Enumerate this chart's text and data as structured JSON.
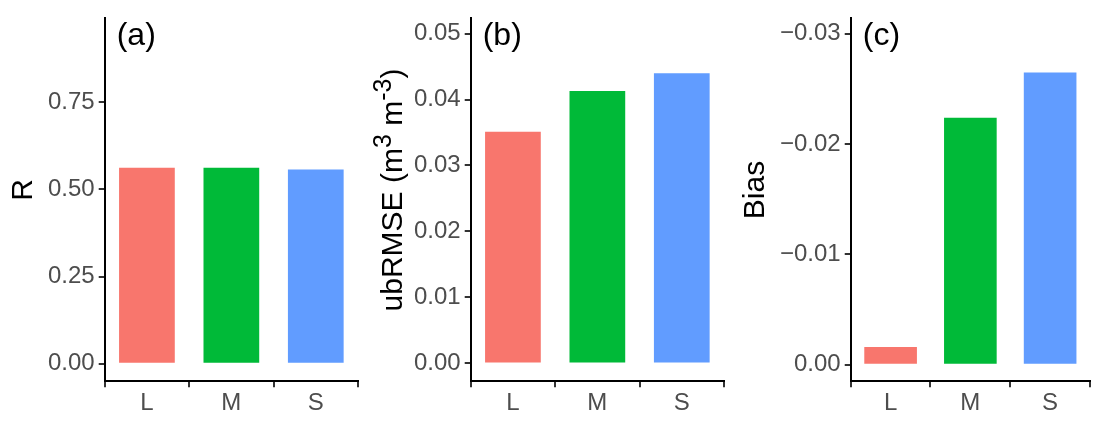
{
  "chart_data": [
    {
      "type": "bar",
      "title": "(a)",
      "ylabel": "R",
      "categories": [
        "L",
        "M",
        "S"
      ],
      "values": [
        0.562,
        0.562,
        0.557
      ],
      "colors": [
        "#f8766d",
        "#00ba38",
        "#619cff"
      ],
      "ylim": [
        -0.05,
        0.99
      ],
      "yticks": [
        {
          "value": 0,
          "label": "0.00"
        },
        {
          "value": 0.25,
          "label": "0.25"
        },
        {
          "value": 0.5,
          "label": "0.50"
        },
        {
          "value": 0.75,
          "label": "0.75"
        }
      ],
      "grid": false,
      "legend": false
    },
    {
      "type": "bar",
      "title": "(b)",
      "ylabel": "ubRMSE (m$^{3}$ m$^{-3}$)",
      "categories": [
        "L",
        "M",
        "S"
      ],
      "values": [
        0.0351,
        0.0413,
        0.044
      ],
      "colors": [
        "#f8766d",
        "#00ba38",
        "#619cff"
      ],
      "ylim": [
        -0.0027,
        0.0523
      ],
      "yticks": [
        {
          "value": 0,
          "label": "0.00"
        },
        {
          "value": 0.01,
          "label": "0.01"
        },
        {
          "value": 0.02,
          "label": "0.02"
        },
        {
          "value": 0.03,
          "label": "0.03"
        },
        {
          "value": 0.04,
          "label": "0.04"
        },
        {
          "value": 0.05,
          "label": "0.05"
        }
      ],
      "grid": false,
      "legend": false
    },
    {
      "type": "bar",
      "title": "(c)",
      "ylabel": "Bias",
      "categories": [
        "L",
        "M",
        "S"
      ],
      "values": [
        -0.0016,
        -0.0224,
        -0.0265
      ],
      "colors": [
        "#f8766d",
        "#00ba38",
        "#619cff"
      ],
      "ylim": [
        0.0015,
        -0.0314
      ],
      "yticks": [
        {
          "value": 0,
          "label": "0.00"
        },
        {
          "value": -0.01,
          "label": "−0.01"
        },
        {
          "value": -0.02,
          "label": "−0.02"
        },
        {
          "value": -0.03,
          "label": "−0.03"
        }
      ],
      "grid": false,
      "legend": false
    }
  ]
}
